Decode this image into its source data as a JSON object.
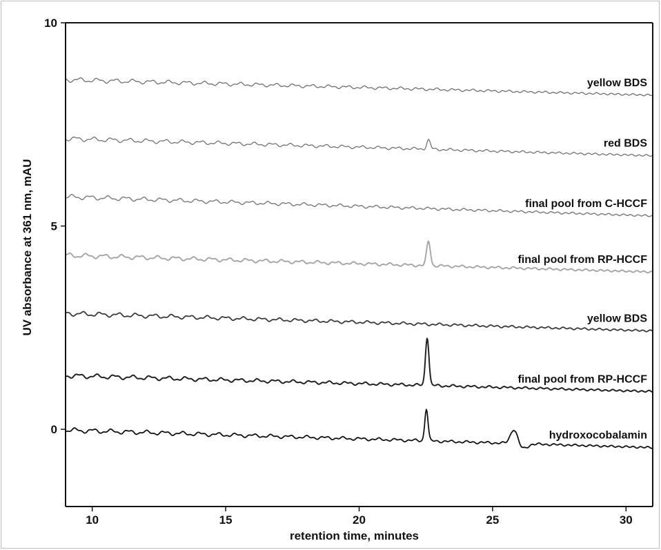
{
  "chart_data": {
    "type": "line",
    "title": "",
    "xlabel": "retention time, minutes",
    "ylabel": "UV absorbance at 361 nm, mAU",
    "xlim": [
      9,
      31
    ],
    "ylim": [
      -1.9,
      10
    ],
    "x_ticks": [
      10,
      15,
      20,
      25,
      30
    ],
    "y_ticks": [
      0,
      5,
      10
    ],
    "grid": false,
    "series": [
      {
        "name": "yellow BDS",
        "color": "#6e6e6e",
        "width": 1.3,
        "start": 8.6,
        "end": 8.22,
        "peaks": []
      },
      {
        "name": "red BDS",
        "color": "#727272",
        "width": 1.3,
        "start": 7.15,
        "end": 6.73,
        "peaks": [
          {
            "x": 22.6,
            "h": 0.22,
            "w": 0.07
          }
        ]
      },
      {
        "name": "final pool from C-HCCF",
        "color": "#808080",
        "width": 1.5,
        "start": 5.72,
        "end": 5.25,
        "peaks": []
      },
      {
        "name": "final pool from RP-HCCF",
        "color": "#a8a8a8",
        "width": 2,
        "start": 4.28,
        "end": 3.87,
        "peaks": [
          {
            "x": 22.6,
            "h": 0.6,
            "w": 0.07
          }
        ]
      },
      {
        "name": "yellow BDS",
        "color": "#3a3a3a",
        "width": 1.8,
        "start": 2.85,
        "end": 2.42,
        "peaks": []
      },
      {
        "name": "final pool from RP-HCCF",
        "color": "#222222",
        "width": 2,
        "start": 1.32,
        "end": 0.93,
        "peaks": [
          {
            "x": 22.55,
            "h": 1.2,
            "w": 0.065
          }
        ]
      },
      {
        "name": "hydroxocobalamin",
        "color": "#111111",
        "width": 1.8,
        "start": -0.02,
        "end": -0.45,
        "peaks": [
          {
            "x": 22.52,
            "h": 0.8,
            "w": 0.06
          },
          {
            "x": 25.8,
            "h": 0.35,
            "w": 0.13
          }
        ]
      }
    ]
  }
}
